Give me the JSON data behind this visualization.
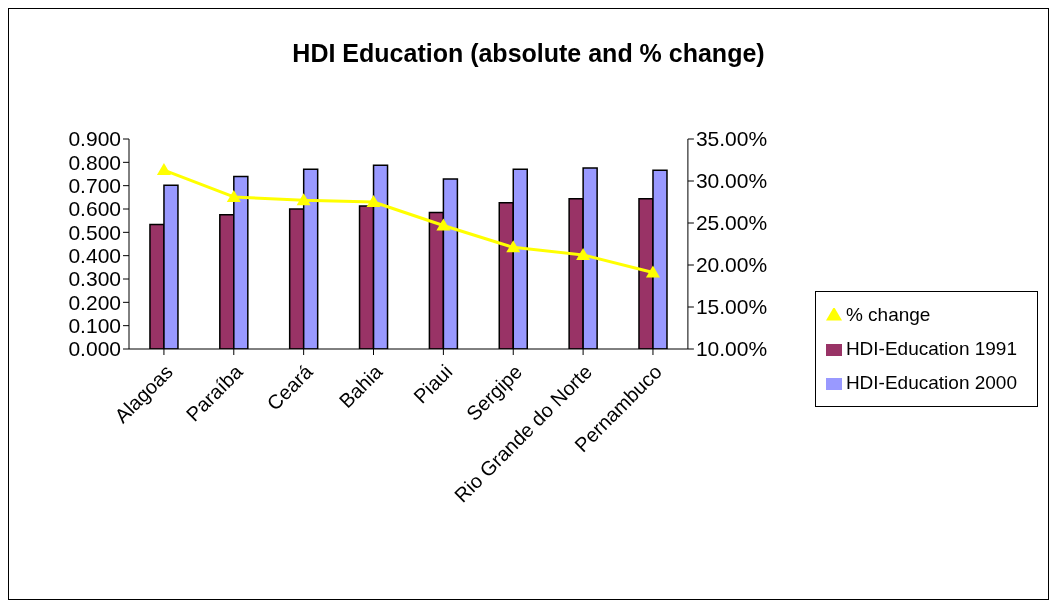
{
  "chart_data": {
    "type": "bar",
    "title": "HDI Education (absolute and %  change)",
    "categories": [
      "Alagoas",
      "Paraíba",
      "Ceará",
      "Bahia",
      "Piaui",
      "Sergipe",
      "Rio Grande do Norte",
      "Pernambuco"
    ],
    "series": [
      {
        "name": "HDI-Education 1991",
        "color": "#993366",
        "values": [
          0.534,
          0.575,
          0.6,
          0.613,
          0.585,
          0.627,
          0.644,
          0.644
        ]
      },
      {
        "name": "HDI-Education 2000",
        "color": "#9999ff",
        "values": [
          0.702,
          0.739,
          0.77,
          0.787,
          0.729,
          0.77,
          0.776,
          0.766
        ]
      },
      {
        "name": "% change",
        "type": "line",
        "axis": "y2",
        "color": "#ffff00",
        "marker": "triangle",
        "values": [
          31.3,
          28.1,
          27.7,
          27.5,
          24.7,
          22.1,
          21.2,
          19.1
        ]
      }
    ],
    "ylim": [
      0,
      0.9
    ],
    "yticks": [
      {
        "value": 0,
        "label": "0.000"
      },
      {
        "value": 0.1,
        "label": "0.100"
      },
      {
        "value": 0.2,
        "label": "0.200"
      },
      {
        "value": 0.3,
        "label": "0.300"
      },
      {
        "value": 0.4,
        "label": "0.400"
      },
      {
        "value": 0.5,
        "label": "0.500"
      },
      {
        "value": 0.6,
        "label": "0.600"
      },
      {
        "value": 0.7,
        "label": "0.700"
      },
      {
        "value": 0.8,
        "label": "0.800"
      },
      {
        "value": 0.9,
        "label": "0.900"
      }
    ],
    "y2lim": [
      10,
      35
    ],
    "y2ticks": [
      {
        "value": 10,
        "label": "10.00%"
      },
      {
        "value": 15,
        "label": "15.00%"
      },
      {
        "value": 20,
        "label": "20.00%"
      },
      {
        "value": 25,
        "label": "25.00%"
      },
      {
        "value": 30,
        "label": "30.00%"
      },
      {
        "value": 35,
        "label": "35.00%"
      }
    ],
    "grid": false,
    "legend": "right"
  }
}
